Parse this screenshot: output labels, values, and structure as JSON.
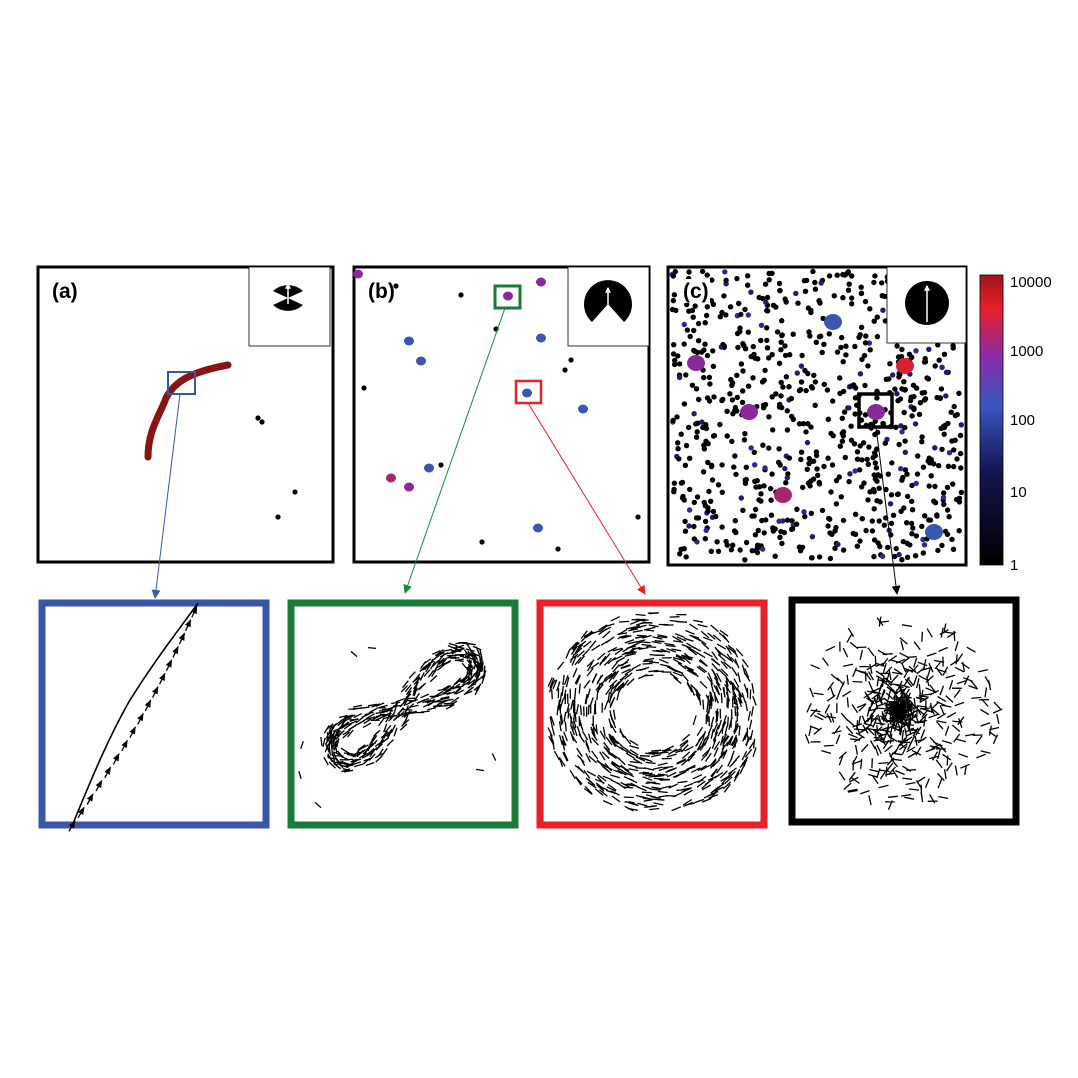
{
  "panels": [
    {
      "label": "(a)",
      "inset": "vision-cone-narrow"
    },
    {
      "label": "(b)",
      "inset": "vision-cone-wide"
    },
    {
      "label": "(c)",
      "inset": "vision-cone-full"
    }
  ],
  "colorbar": {
    "scale": "log",
    "ticks": [
      "10000",
      "1000",
      "100",
      "10",
      "1"
    ],
    "colors": [
      "#b01c1c",
      "#e8202a",
      "#7a2aa8",
      "#3450b8",
      "#1a1a66",
      "#000000"
    ]
  },
  "zoom_boxes": [
    {
      "name": "zoom-blue",
      "color": "#3a56a8",
      "pattern": "aligned-stream"
    },
    {
      "name": "zoom-green",
      "color": "#1a7a3a",
      "pattern": "figure-eight"
    },
    {
      "name": "zoom-red",
      "color": "#e82228",
      "pattern": "vortex-ring"
    },
    {
      "name": "zoom-black",
      "color": "#000000",
      "pattern": "disordered-swarm"
    }
  ],
  "colors": {
    "trail_dark_red": "#8a1414",
    "cluster_purple": "#8a2a9a",
    "cluster_blue": "#3a56b0",
    "cluster_magenta": "#a8266e",
    "cluster_red": "#d82030"
  }
}
